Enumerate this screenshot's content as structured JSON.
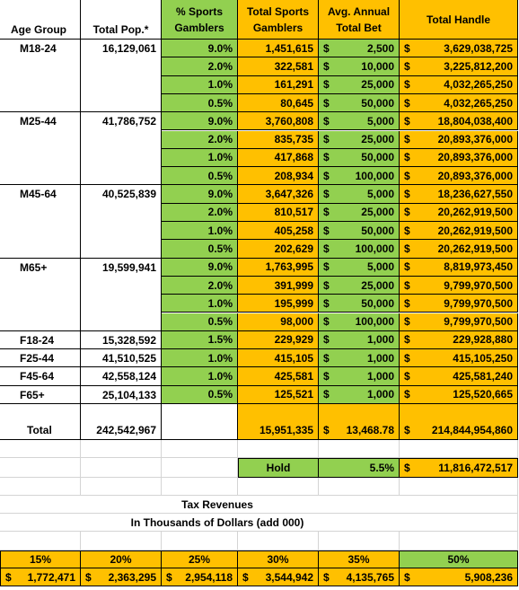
{
  "currency": "$",
  "header": [
    "Age Group",
    "Total Pop.*",
    "% Sports Gamblers",
    "Total Sports Gamblers",
    "Avg. Annual Total Bet",
    "Total Handle"
  ],
  "groups": [
    {
      "age": "M18-24",
      "pop": "16,129,061",
      "rows": [
        [
          "9.0%",
          "1,451,615",
          "2,500",
          "3,629,038,725"
        ],
        [
          "2.0%",
          "322,581",
          "10,000",
          "3,225,812,200"
        ],
        [
          "1.0%",
          "161,291",
          "25,000",
          "4,032,265,250"
        ],
        [
          "0.5%",
          "80,645",
          "50,000",
          "4,032,265,250"
        ]
      ]
    },
    {
      "age": "M25-44",
      "pop": "41,786,752",
      "rows": [
        [
          "9.0%",
          "3,760,808",
          "5,000",
          "18,804,038,400"
        ],
        [
          "2.0%",
          "835,735",
          "25,000",
          "20,893,376,000"
        ],
        [
          "1.0%",
          "417,868",
          "50,000",
          "20,893,376,000"
        ],
        [
          "0.5%",
          "208,934",
          "100,000",
          "20,893,376,000"
        ]
      ]
    },
    {
      "age": "M45-64",
      "pop": "40,525,839",
      "rows": [
        [
          "9.0%",
          "3,647,326",
          "5,000",
          "18,236,627,550"
        ],
        [
          "2.0%",
          "810,517",
          "25,000",
          "20,262,919,500"
        ],
        [
          "1.0%",
          "405,258",
          "50,000",
          "20,262,919,500"
        ],
        [
          "0.5%",
          "202,629",
          "100,000",
          "20,262,919,500"
        ]
      ]
    },
    {
      "age": "M65+",
      "pop": "19,599,941",
      "rows": [
        [
          "9.0%",
          "1,763,995",
          "5,000",
          "8,819,973,450"
        ],
        [
          "2.0%",
          "391,999",
          "25,000",
          "9,799,970,500"
        ],
        [
          "1.0%",
          "195,999",
          "50,000",
          "9,799,970,500"
        ],
        [
          "0.5%",
          "98,000",
          "100,000",
          "9,799,970,500"
        ]
      ]
    },
    {
      "age": "F18-24",
      "pop": "15,328,592",
      "rows": [
        [
          "1.5%",
          "229,929",
          "1,000",
          "229,928,880"
        ]
      ]
    },
    {
      "age": "F25-44",
      "pop": "41,510,525",
      "rows": [
        [
          "1.0%",
          "415,105",
          "1,000",
          "415,105,250"
        ]
      ]
    },
    {
      "age": "F45-64",
      "pop": "42,558,124",
      "rows": [
        [
          "1.0%",
          "425,581",
          "1,000",
          "425,581,240"
        ]
      ]
    },
    {
      "age": "F65+",
      "pop": "25,104,133",
      "rows": [
        [
          "0.5%",
          "125,521",
          "1,000",
          "125,520,665"
        ]
      ]
    }
  ],
  "total": {
    "label": "Total",
    "pop": "242,542,967",
    "gamblers": "15,951,335",
    "bet": "13,468.78",
    "handle": "214,844,954,860"
  },
  "hold": {
    "label": "Hold",
    "rate": "5.5%",
    "value": "11,816,472,517"
  },
  "tax": {
    "title": "Tax Revenues",
    "subtitle": "In Thousands of Dollars (add 000)",
    "rates": [
      "15%",
      "20%",
      "25%",
      "30%",
      "35%",
      "50%"
    ],
    "values": [
      "1,772,471",
      "2,363,295",
      "2,954,118",
      "3,544,942",
      "4,135,765",
      "5,908,236"
    ]
  }
}
